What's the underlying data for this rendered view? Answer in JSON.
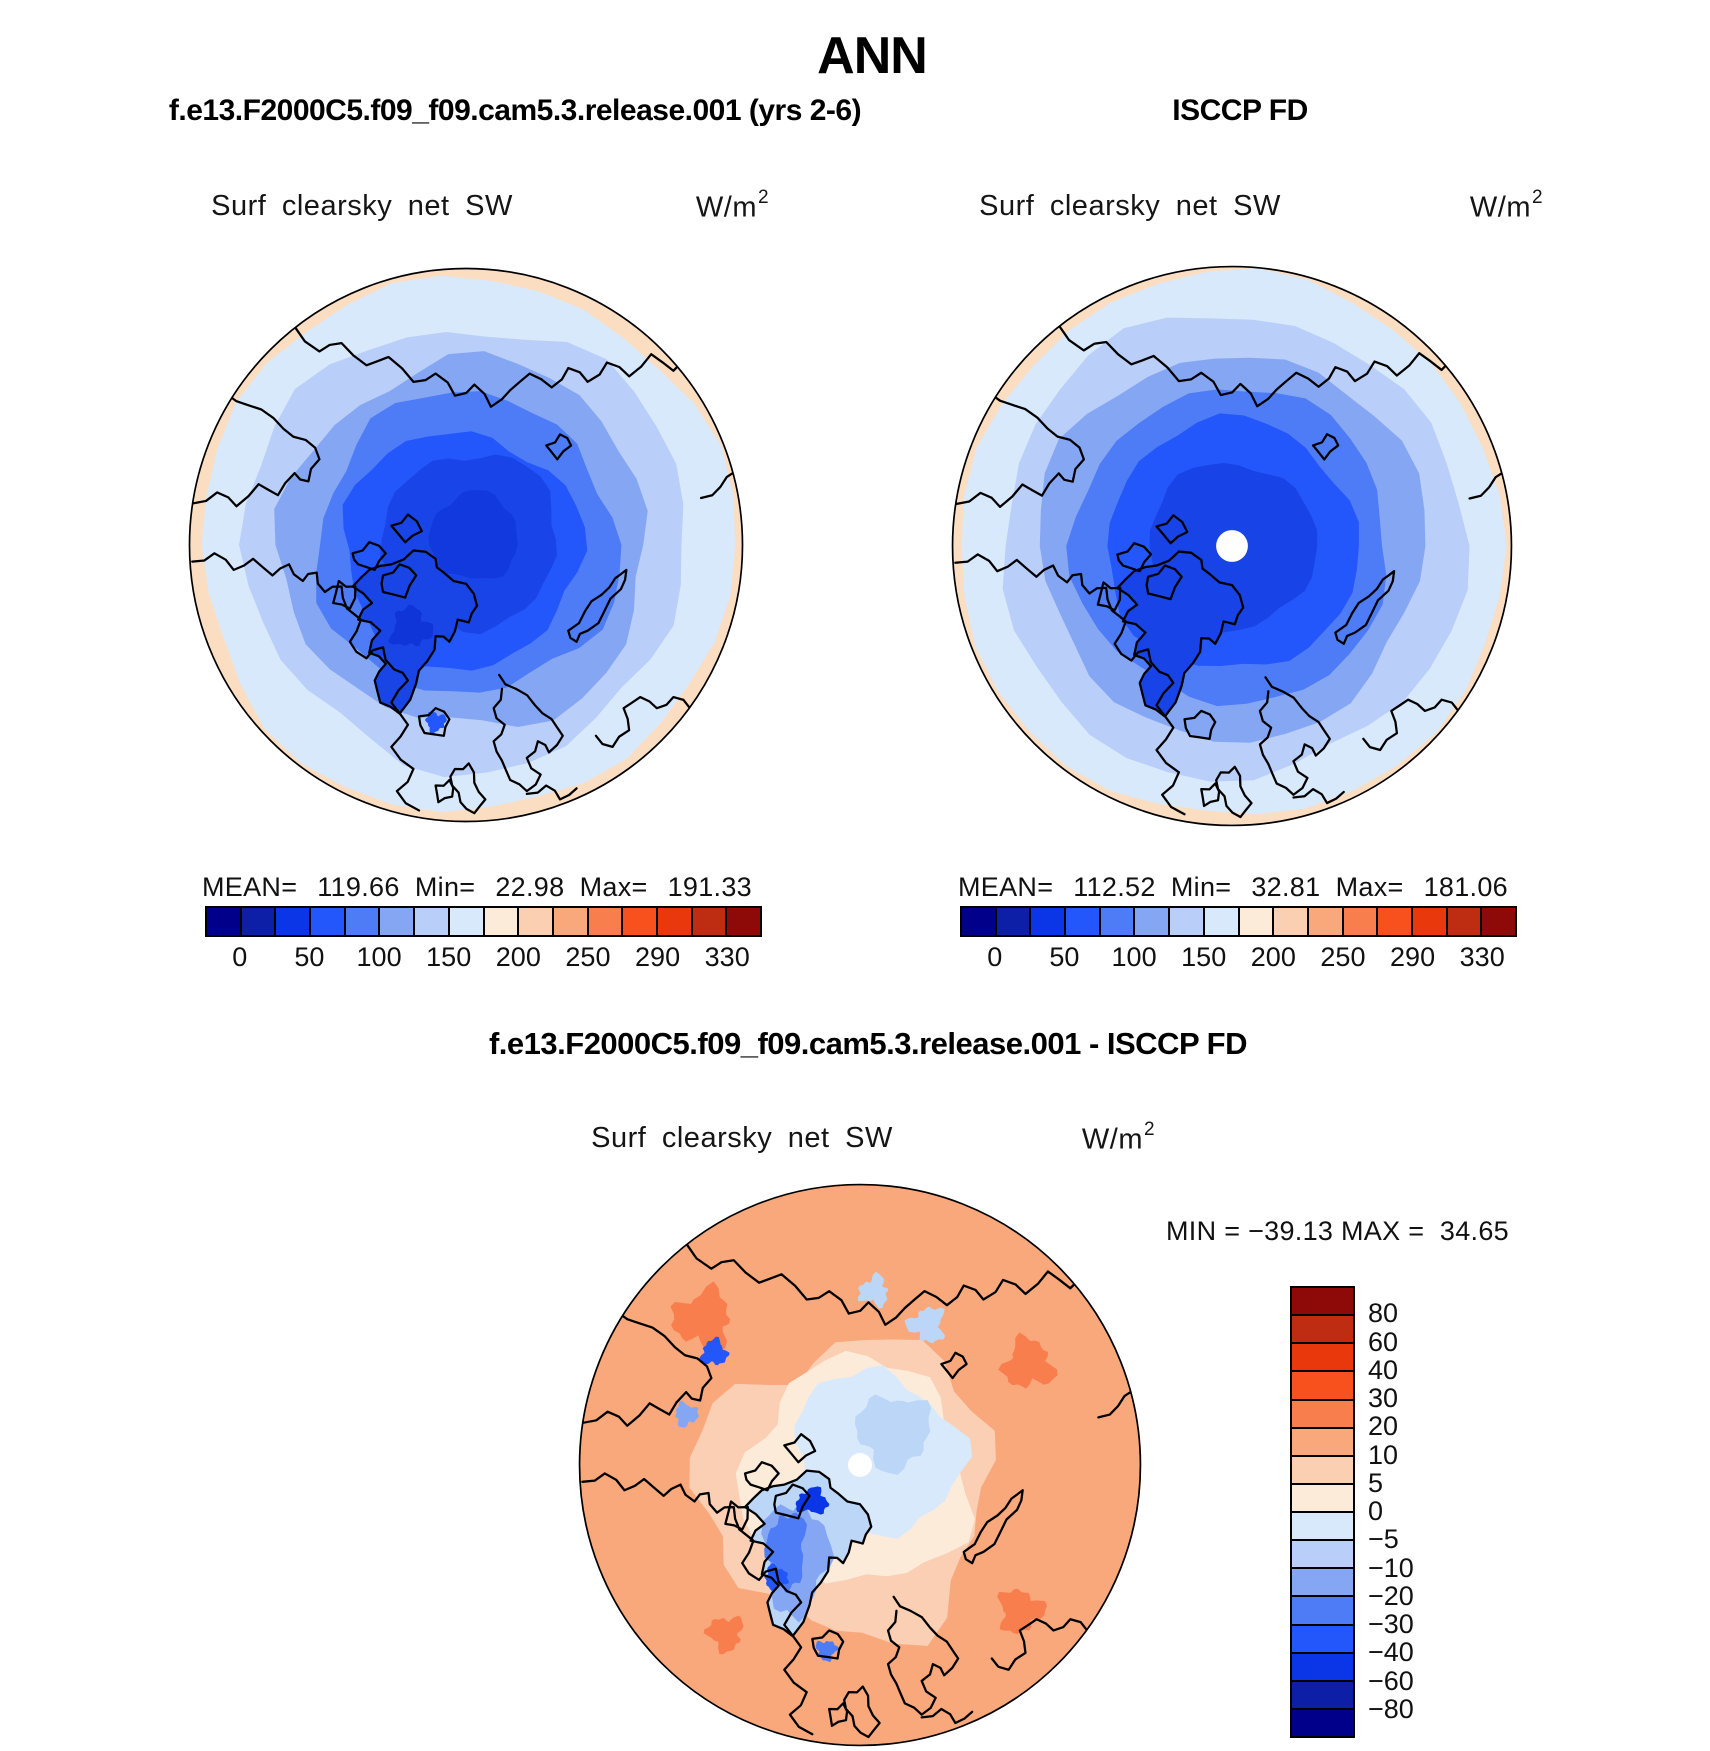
{
  "page_title": "ANN",
  "header": {
    "left_subtitle": "f.e13.F2000C5.f09_f09.cam5.3.release.001 (yrs 2-6)",
    "right_subtitle": "ISCCP FD"
  },
  "field_label": "Surf clearsky net SW",
  "units": {
    "base": "W/m",
    "exponent": "2"
  },
  "panels": {
    "model": {
      "stats": {
        "mean_label": "MEAN=",
        "mean": "119.66",
        "min_label": "Min=",
        "min": "22.98",
        "max_label": "Max=",
        "max": "191.33"
      }
    },
    "obs": {
      "stats": {
        "mean_label": "MEAN=",
        "mean": "112.52",
        "min_label": "Min=",
        "min": "32.81",
        "max_label": "Max=",
        "max": "181.06"
      }
    },
    "diff": {
      "subtitle": "f.e13.F2000C5.f09_f09.cam5.3.release.001 - ISCCP FD",
      "minmax": {
        "min_label": "MIN = ",
        "min_value": "−39.13",
        "max_label": " MAX = ",
        "max_value": " 34.65"
      }
    }
  },
  "colorbar": {
    "palette_cold_to_warm": [
      "#00008B",
      "#0D1FA6",
      "#0A36E8",
      "#2357FB",
      "#4E7CF6",
      "#85A7F3",
      "#B9CEF9",
      "#D8E9FB",
      "#FDEBDA",
      "#FACFB2",
      "#F9A87C",
      "#F97E4E",
      "#F8511D",
      "#E8380C",
      "#BE2C12",
      "#8E0A09"
    ],
    "top_ticks": [
      "0",
      "50",
      "100",
      "150",
      "200",
      "250",
      "290",
      "330"
    ],
    "diff_ticks": [
      "80",
      "60",
      "40",
      "30",
      "20",
      "10",
      "5",
      "0",
      "−5",
      "−10",
      "−20",
      "−30",
      "−40",
      "−60",
      "−80"
    ]
  },
  "chart_data": [
    {
      "type": "heatmap",
      "panel": "model",
      "title": "f.e13.F2000C5.f09_f09.cam5.3.release.001 (yrs 2-6)",
      "variable": "Surf clearsky net SW",
      "units": "W/m^2",
      "season": "ANN",
      "projection": "north polar stereographic",
      "stats": {
        "mean": 119.66,
        "min": 22.98,
        "max": 191.33
      },
      "colorbar_ticks": [
        0,
        50,
        100,
        150,
        200,
        250,
        290,
        330
      ],
      "n_color_levels": 16,
      "legend_position": "below"
    },
    {
      "type": "heatmap",
      "panel": "observation",
      "title": "ISCCP FD",
      "variable": "Surf clearsky net SW",
      "units": "W/m^2",
      "season": "ANN",
      "projection": "north polar stereographic",
      "stats": {
        "mean": 112.52,
        "min": 32.81,
        "max": 181.06
      },
      "colorbar_ticks": [
        0,
        50,
        100,
        150,
        200,
        250,
        290,
        330
      ],
      "n_color_levels": 16,
      "legend_position": "below"
    },
    {
      "type": "heatmap",
      "panel": "difference",
      "title": "f.e13.F2000C5.f09_f09.cam5.3.release.001 - ISCCP FD",
      "variable": "Surf clearsky net SW",
      "units": "W/m^2",
      "season": "ANN",
      "projection": "north polar stereographic",
      "stats": {
        "min": -39.13,
        "max": 34.65
      },
      "colorbar_ticks": [
        80,
        60,
        40,
        30,
        20,
        10,
        5,
        0,
        -5,
        -10,
        -20,
        -30,
        -40,
        -60,
        -80
      ],
      "n_color_levels": 16,
      "legend_position": "right"
    }
  ]
}
